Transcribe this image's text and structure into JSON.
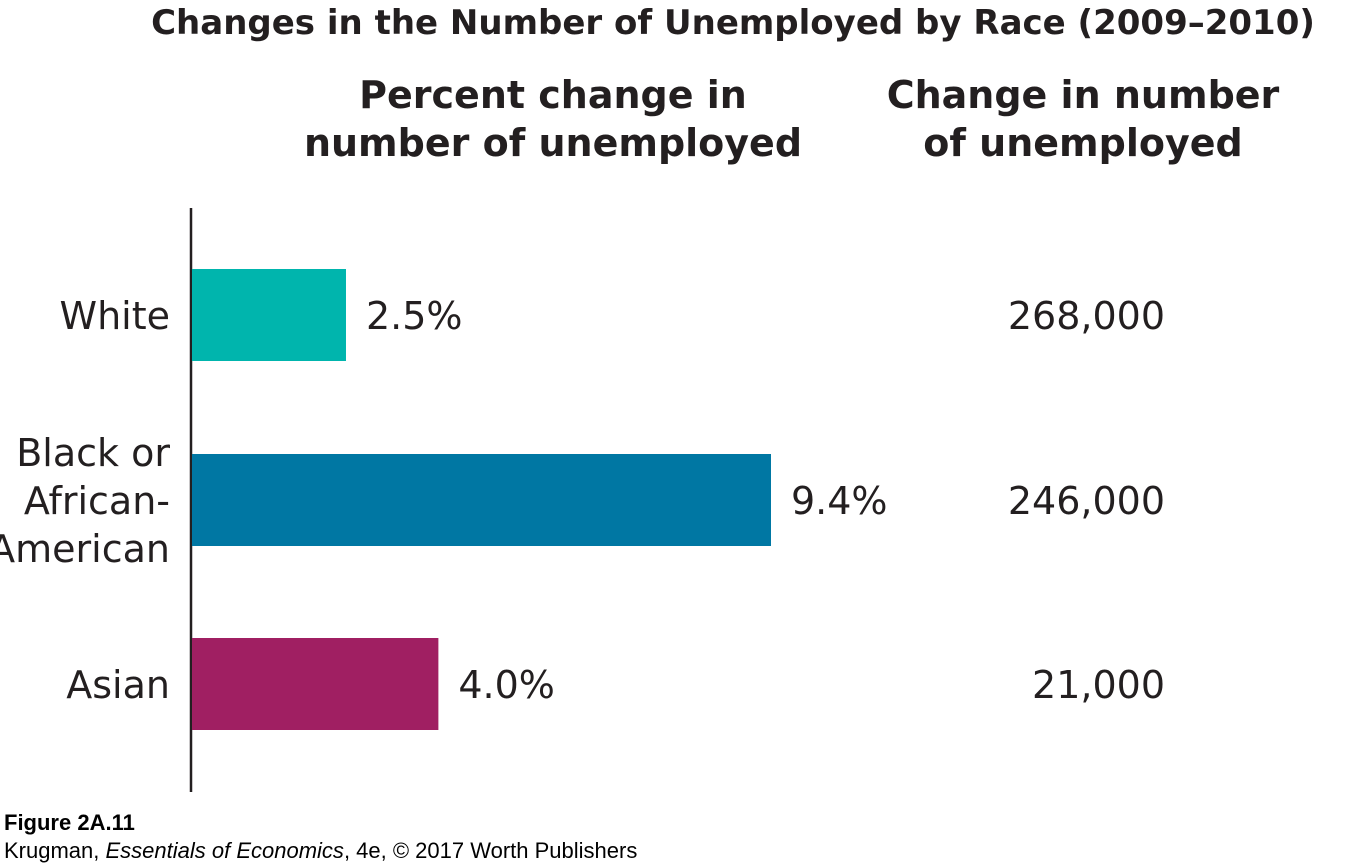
{
  "chart_data": {
    "type": "bar",
    "orientation": "horizontal",
    "title": "Changes in the Number of Unemployed by Race (2009–2010)",
    "percent_column_header": [
      "Percent change in",
      "number of unemployed"
    ],
    "number_column_header": [
      "Change in number",
      "of unemployed"
    ],
    "categories": [
      {
        "label_lines": [
          "White"
        ],
        "percent": 2.5,
        "percent_label": "2.5%",
        "number_label": "268,000",
        "color": "#00b5ad"
      },
      {
        "label_lines": [
          "Black or",
          "African-",
          "American"
        ],
        "percent": 9.4,
        "percent_label": "9.4%",
        "number_label": "246,000",
        "color": "#0077a3"
      },
      {
        "label_lines": [
          "Asian"
        ],
        "percent": 4.0,
        "percent_label": "4.0%",
        "number_label": "21,000",
        "color": "#a01f62"
      }
    ],
    "xlim": [
      0,
      10
    ],
    "grid": false,
    "legend": "none"
  },
  "caption": {
    "figure": "Figure 2A.11",
    "credit_prefix": "Krugman, ",
    "credit_book": "Essentials of Economics",
    "credit_suffix": ", 4e, © 2017 Worth Publishers"
  }
}
